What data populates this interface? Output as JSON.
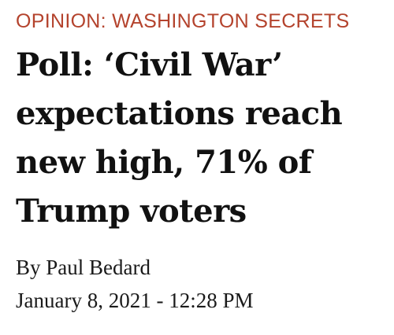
{
  "section": {
    "label": "OPINION: WASHINGTON SECRETS"
  },
  "headline": {
    "lines": [
      "Poll: ‘Civil War’",
      "expectations reach",
      "new high, 71% of",
      "Trump voters"
    ]
  },
  "byline": {
    "text": "By Paul Bedard"
  },
  "dateline": {
    "text": "January 8, 2021 - 12:28 PM"
  },
  "colors": {
    "section_label": "#b4432d",
    "headline": "#111111",
    "body_text": "#1a1a1a",
    "background": "#ffffff"
  }
}
